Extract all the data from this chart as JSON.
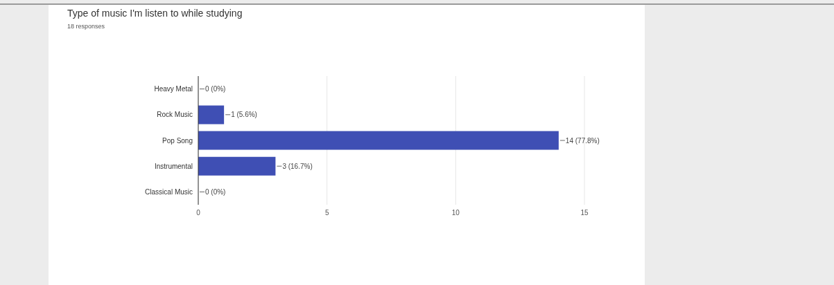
{
  "chart_data": {
    "type": "bar",
    "orientation": "horizontal",
    "title": "Type of music I'm listen to while studying",
    "subtitle": "18 responses",
    "categories": [
      "Heavy Metal",
      "Rock Music",
      "Pop Song",
      "Instrumental",
      "Classical Music"
    ],
    "values": [
      0,
      1,
      14,
      3,
      0
    ],
    "value_labels": [
      "0 (0%)",
      "1 (5.6%)",
      "14 (77.8%)",
      "3 (16.7%)",
      "0 (0%)"
    ],
    "color": "#3f4fb4",
    "xlim": [
      0,
      15
    ],
    "xticks": [
      0,
      5,
      10,
      15
    ],
    "grid": "x",
    "legend": false
  }
}
